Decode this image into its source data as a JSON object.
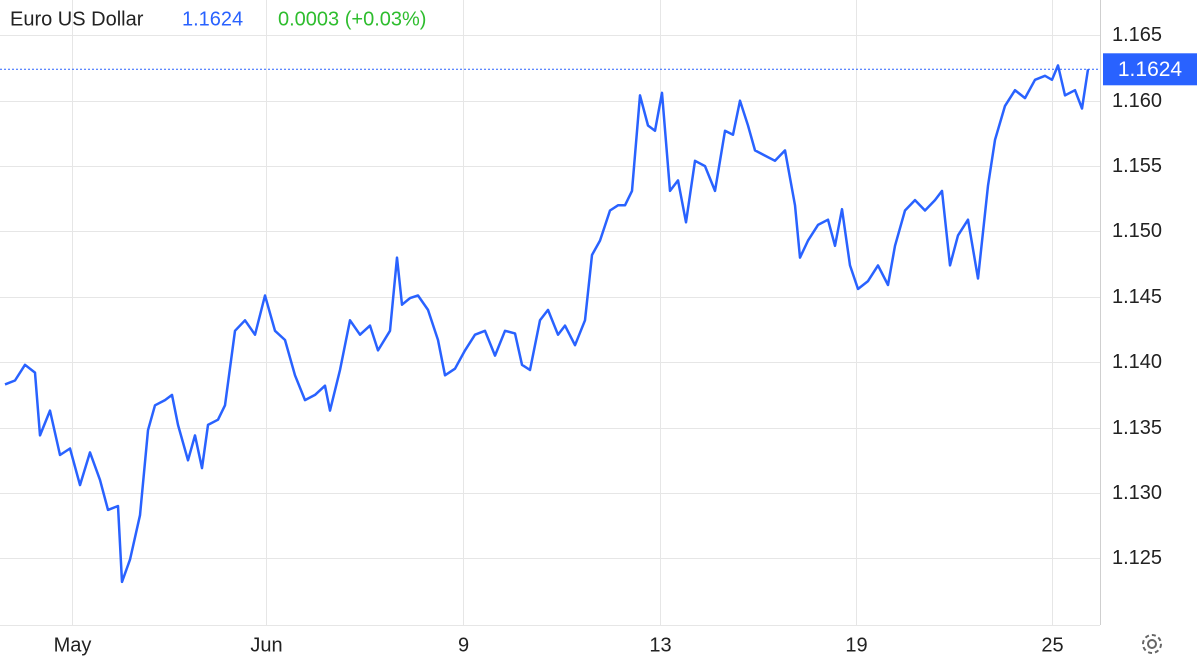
{
  "chart_data": {
    "type": "line",
    "title": "Euro US Dollar",
    "last_price": 1.1624,
    "change_text": "0.0003 (+0.03%)",
    "x": [
      5,
      15,
      25,
      35,
      40,
      50,
      60,
      70,
      80,
      90,
      100,
      108,
      118,
      122,
      130,
      140,
      148,
      155,
      165,
      172,
      178,
      188,
      195,
      202,
      208,
      218,
      225,
      235,
      245,
      255,
      265,
      275,
      285,
      295,
      305,
      315,
      325,
      330,
      340,
      350,
      360,
      370,
      378,
      390,
      397,
      402,
      410,
      418,
      428,
      438,
      445,
      455,
      465,
      475,
      485,
      495,
      505,
      515,
      522,
      530,
      540,
      548,
      558,
      565,
      575,
      585,
      592,
      600,
      610,
      618,
      625,
      632,
      640,
      648,
      655,
      662,
      670,
      678,
      686,
      695,
      705,
      715,
      725,
      733,
      740,
      748,
      755,
      765,
      775,
      785,
      795,
      800,
      808,
      818,
      828,
      835,
      842,
      850,
      858,
      868,
      878,
      888,
      895,
      905,
      915,
      925,
      935,
      942,
      950,
      958,
      968,
      978,
      988,
      995,
      1005,
      1015,
      1025,
      1035,
      1045,
      1052,
      1058,
      1065,
      1075,
      1082,
      1088
    ],
    "series": [
      {
        "name": "Euro US Dollar",
        "color": "#2962ff",
        "values": [
          1.1383,
          1.1386,
          1.1398,
          1.1392,
          1.1344,
          1.1363,
          1.1329,
          1.1334,
          1.1306,
          1.1331,
          1.131,
          1.1287,
          1.129,
          1.1232,
          1.1249,
          1.1283,
          1.1348,
          1.1367,
          1.1371,
          1.1375,
          1.1352,
          1.1325,
          1.1344,
          1.1319,
          1.1352,
          1.1356,
          1.1367,
          1.1424,
          1.1432,
          1.1421,
          1.1451,
          1.1424,
          1.1417,
          1.139,
          1.1371,
          1.1375,
          1.1382,
          1.1363,
          1.1394,
          1.1432,
          1.1421,
          1.1428,
          1.1409,
          1.1424,
          1.148,
          1.1444,
          1.1449,
          1.1451,
          1.144,
          1.1417,
          1.139,
          1.1395,
          1.1409,
          1.1421,
          1.1424,
          1.1405,
          1.1424,
          1.1422,
          1.1398,
          1.1394,
          1.1432,
          1.144,
          1.1421,
          1.1428,
          1.1413,
          1.1432,
          1.1482,
          1.1493,
          1.1516,
          1.152,
          1.152,
          1.1531,
          1.1604,
          1.1581,
          1.1577,
          1.1606,
          1.1531,
          1.1539,
          1.1507,
          1.1554,
          1.155,
          1.1531,
          1.1577,
          1.1574,
          1.16,
          1.1581,
          1.1562,
          1.1558,
          1.1554,
          1.1562,
          1.152,
          1.148,
          1.1493,
          1.1505,
          1.1509,
          1.1489,
          1.1517,
          1.1474,
          1.1456,
          1.1462,
          1.1474,
          1.1459,
          1.1489,
          1.1516,
          1.1524,
          1.1516,
          1.1524,
          1.1531,
          1.1474,
          1.1497,
          1.1509,
          1.1464,
          1.1535,
          1.157,
          1.1596,
          1.1608,
          1.1602,
          1.1616,
          1.1619,
          1.1616,
          1.1627,
          1.1604,
          1.1608,
          1.1594,
          1.1624
        ]
      }
    ],
    "xlim": [
      0,
      1100
    ],
    "xticks": [
      {
        "value": 72,
        "label": "May"
      },
      {
        "value": 266,
        "label": "Jun"
      },
      {
        "value": 463,
        "label": "9"
      },
      {
        "value": 660,
        "label": "13"
      },
      {
        "value": 856,
        "label": "19"
      },
      {
        "value": 1052,
        "label": "25"
      }
    ],
    "ylim": [
      1.1199,
      1.1677
    ],
    "yticks": [
      1.125,
      {
        "value": 1.13,
        "label": "1.130"
      },
      1.135,
      {
        "value": 1.14,
        "label": "1.140"
      },
      1.145,
      {
        "value": 1.15,
        "label": "1.150"
      },
      1.155,
      {
        "value": 1.16,
        "label": "1.160"
      },
      1.165
    ],
    "grid": true
  }
}
